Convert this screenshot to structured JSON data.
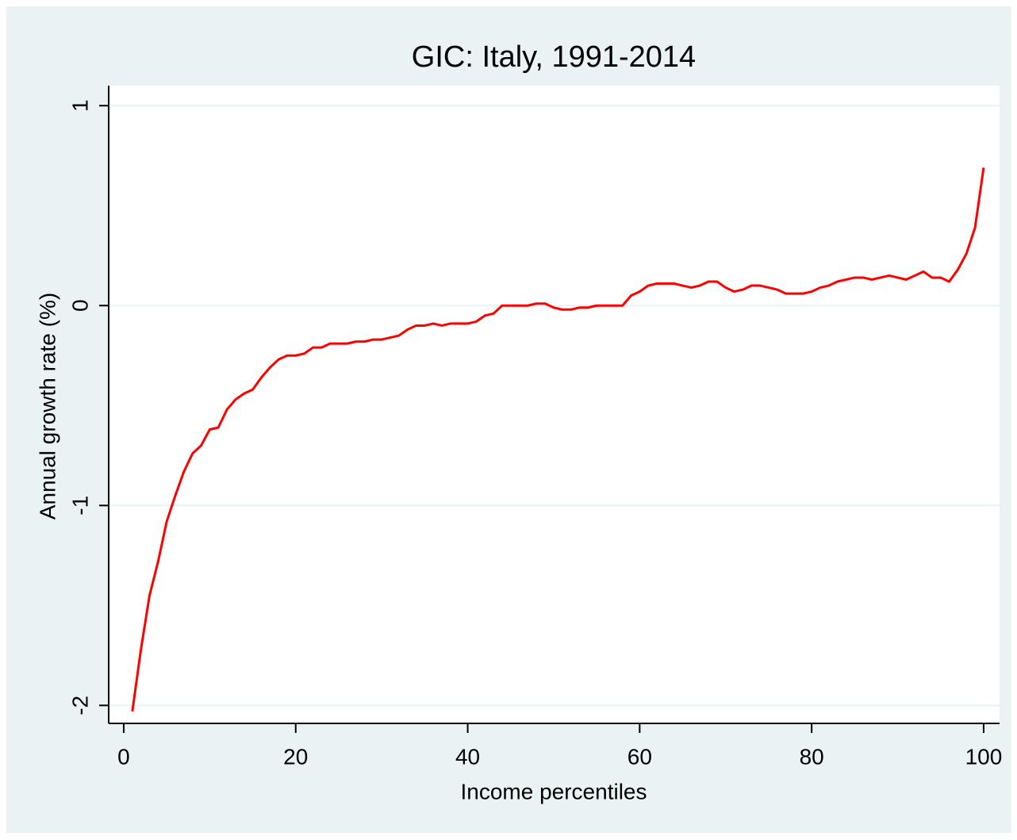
{
  "chart_data": {
    "type": "line",
    "title": "GIC: Italy, 1991-2014",
    "x_label": "Income percentiles",
    "y_label": "Annual growth rate (%)",
    "x": [
      1,
      2,
      3,
      4,
      5,
      6,
      7,
      8,
      9,
      10,
      11,
      12,
      13,
      14,
      15,
      16,
      17,
      18,
      19,
      20,
      21,
      22,
      23,
      24,
      25,
      26,
      27,
      28,
      29,
      30,
      31,
      32,
      33,
      34,
      35,
      36,
      37,
      38,
      39,
      40,
      41,
      42,
      43,
      44,
      45,
      46,
      47,
      48,
      49,
      50,
      51,
      52,
      53,
      54,
      55,
      56,
      57,
      58,
      59,
      60,
      61,
      62,
      63,
      64,
      65,
      66,
      67,
      68,
      69,
      70,
      71,
      72,
      73,
      74,
      75,
      76,
      77,
      78,
      79,
      80,
      81,
      82,
      83,
      84,
      85,
      86,
      87,
      88,
      89,
      90,
      91,
      92,
      93,
      94,
      95,
      96,
      97,
      98,
      99,
      100
    ],
    "series": [
      {
        "name": "GIC",
        "color": "#ff0000",
        "values": [
          -2.03,
          -1.72,
          -1.45,
          -1.28,
          -1.08,
          -0.95,
          -0.83,
          -0.74,
          -0.7,
          -0.62,
          -0.61,
          -0.52,
          -0.47,
          -0.44,
          -0.42,
          -0.36,
          -0.31,
          -0.27,
          -0.25,
          -0.25,
          -0.24,
          -0.21,
          -0.21,
          -0.19,
          -0.19,
          -0.19,
          -0.18,
          -0.18,
          -0.17,
          -0.17,
          -0.16,
          -0.15,
          -0.12,
          -0.1,
          -0.1,
          -0.09,
          -0.1,
          -0.09,
          -0.09,
          -0.09,
          -0.08,
          -0.05,
          -0.04,
          0,
          0,
          0,
          0,
          0.01,
          0.01,
          -0.01,
          -0.02,
          -0.02,
          -0.01,
          -0.01,
          0,
          0,
          0,
          0,
          0.05,
          0.07,
          0.1,
          0.11,
          0.11,
          0.11,
          0.1,
          0.09,
          0.1,
          0.12,
          0.12,
          0.09,
          0.07,
          0.08,
          0.1,
          0.1,
          0.09,
          0.08,
          0.06,
          0.06,
          0.06,
          0.07,
          0.09,
          0.1,
          0.12,
          0.13,
          0.14,
          0.14,
          0.13,
          0.14,
          0.15,
          0.14,
          0.13,
          0.15,
          0.17,
          0.14,
          0.14,
          0.12,
          0.18,
          0.26,
          0.39,
          0.69
        ]
      }
    ],
    "xlim": [
      -1.75,
      101.85
    ],
    "xticks": [
      0,
      20,
      40,
      60,
      80,
      100
    ],
    "ylim": [
      -2.09,
      1.1
    ],
    "yticks": [
      -2,
      -1,
      0,
      1
    ],
    "grid": true
  }
}
